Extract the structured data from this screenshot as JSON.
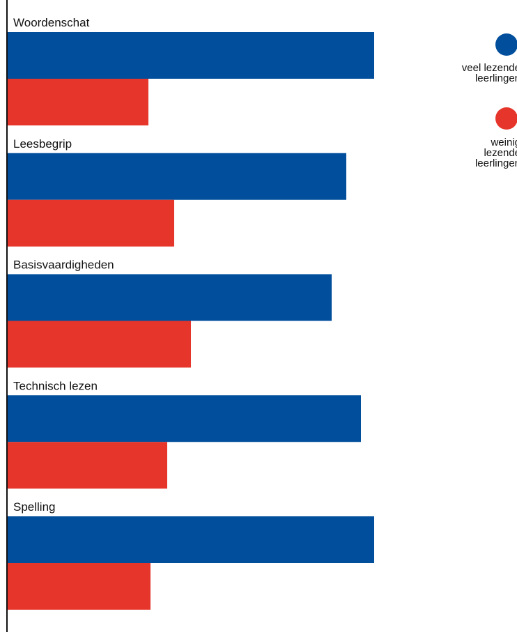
{
  "chart_data": {
    "type": "bar",
    "orientation": "horizontal",
    "categories": [
      "Woordenschat",
      "Leesbegrip",
      "Basisvaardigheden",
      "Technisch lezen",
      "Spelling"
    ],
    "series": [
      {
        "name": "veel lezende leerlingen",
        "legend_lines": [
          "veel lezende",
          "leerlingen"
        ],
        "color": "#004e9c",
        "values": [
          527,
          487,
          466,
          508,
          527
        ]
      },
      {
        "name": "weinig lezende leerlingen",
        "legend_lines": [
          "weinig",
          "lezende",
          "leerlingen"
        ],
        "color": "#e6352b",
        "values": [
          203,
          240,
          264,
          230,
          206
        ]
      }
    ],
    "xlim": [
      0,
      732
    ],
    "axis_line": true,
    "grid": false,
    "legend_position": "top-right"
  }
}
